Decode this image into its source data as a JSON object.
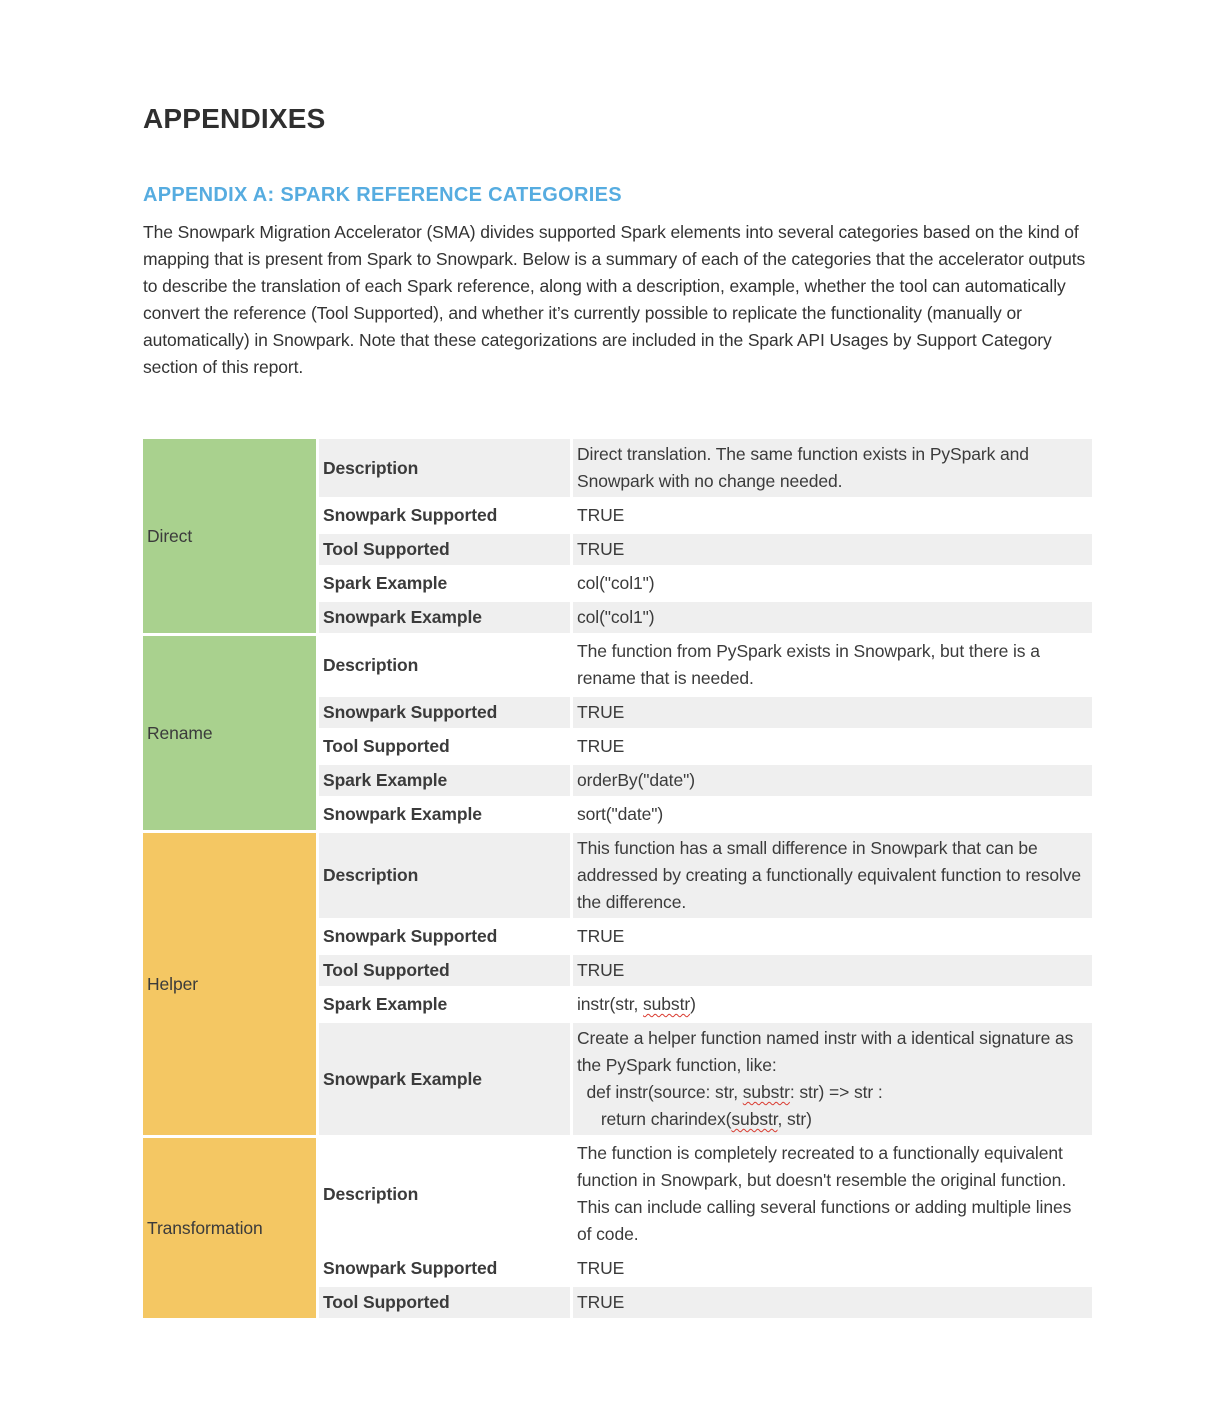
{
  "document": {
    "title": "APPENDIXES",
    "appendix_heading": "APPENDIX A: SPARK REFERENCE CATEGORIES",
    "intro_paragraph": "The Snowpark Migration Accelerator (SMA) divides supported Spark elements into several categories based on the kind of mapping that is present from Spark to Snowpark. Below is a summary of each of the categories that the accelerator outputs to describe the translation of each Spark reference, along with a description, example, whether the tool can automatically convert the reference (Tool Supported), and whether it’s currently possible to replicate the functionality (manually or automatically) in Snowpark. Note that these categorizations are included in the Spark API Usages by Support Category section of this report."
  },
  "colors": {
    "appendix_heading_blue": "#56ace0",
    "category_green": "#a9d18e",
    "category_yellow": "#f4c763",
    "row_shade_gray": "#efefef",
    "spellcheck_squiggle_red": "#d93a2f",
    "body_text": "#3b3b3b"
  },
  "spellcheck_words": [
    "substr"
  ],
  "table": {
    "sections": [
      {
        "category": "Direct",
        "rows": [
          {
            "label": "Description",
            "value": "Direct translation. The same function exists in PySpark and Snowpark with no change needed."
          },
          {
            "label": "Snowpark Supported",
            "value": "TRUE"
          },
          {
            "label": "Tool Supported",
            "value": "TRUE"
          },
          {
            "label": "Spark Example",
            "value": "col(\"col1\")"
          },
          {
            "label": "Snowpark Example",
            "value": "col(\"col1\")"
          }
        ]
      },
      {
        "category": "Rename",
        "rows": [
          {
            "label": "Description",
            "value": "The function from PySpark exists in Snowpark, but there is a rename that is needed."
          },
          {
            "label": "Snowpark Supported",
            "value": "TRUE"
          },
          {
            "label": "Tool Supported",
            "value": "TRUE"
          },
          {
            "label": "Spark Example",
            "value": "orderBy(\"date\")"
          },
          {
            "label": "Snowpark Example",
            "value": "sort(\"date\")"
          }
        ]
      },
      {
        "category": "Helper",
        "rows": [
          {
            "label": "Description",
            "value": "This function has a small difference in Snowpark that can be addressed by creating a functionally equivalent function to resolve the difference."
          },
          {
            "label": "Snowpark Supported",
            "value": "TRUE"
          },
          {
            "label": "Tool Supported",
            "value": "TRUE"
          },
          {
            "label": "Spark Example",
            "value": "instr(str, substr)"
          },
          {
            "label": "Snowpark Example",
            "value": "Create a helper function named instr with a identical signature as the PySpark function, like:\n  def instr(source: str, substr: str) => str :\n     return charindex(substr, str)"
          }
        ]
      },
      {
        "category": "Transformation",
        "rows": [
          {
            "label": "Description",
            "value": "The function is completely recreated to a functionally equivalent function in Snowpark, but doesn't resemble the original function. This can include calling several functions or adding multiple lines of code."
          },
          {
            "label": "Snowpark Supported",
            "value": "TRUE"
          },
          {
            "label": "Tool Supported",
            "value": "TRUE"
          }
        ]
      }
    ]
  }
}
